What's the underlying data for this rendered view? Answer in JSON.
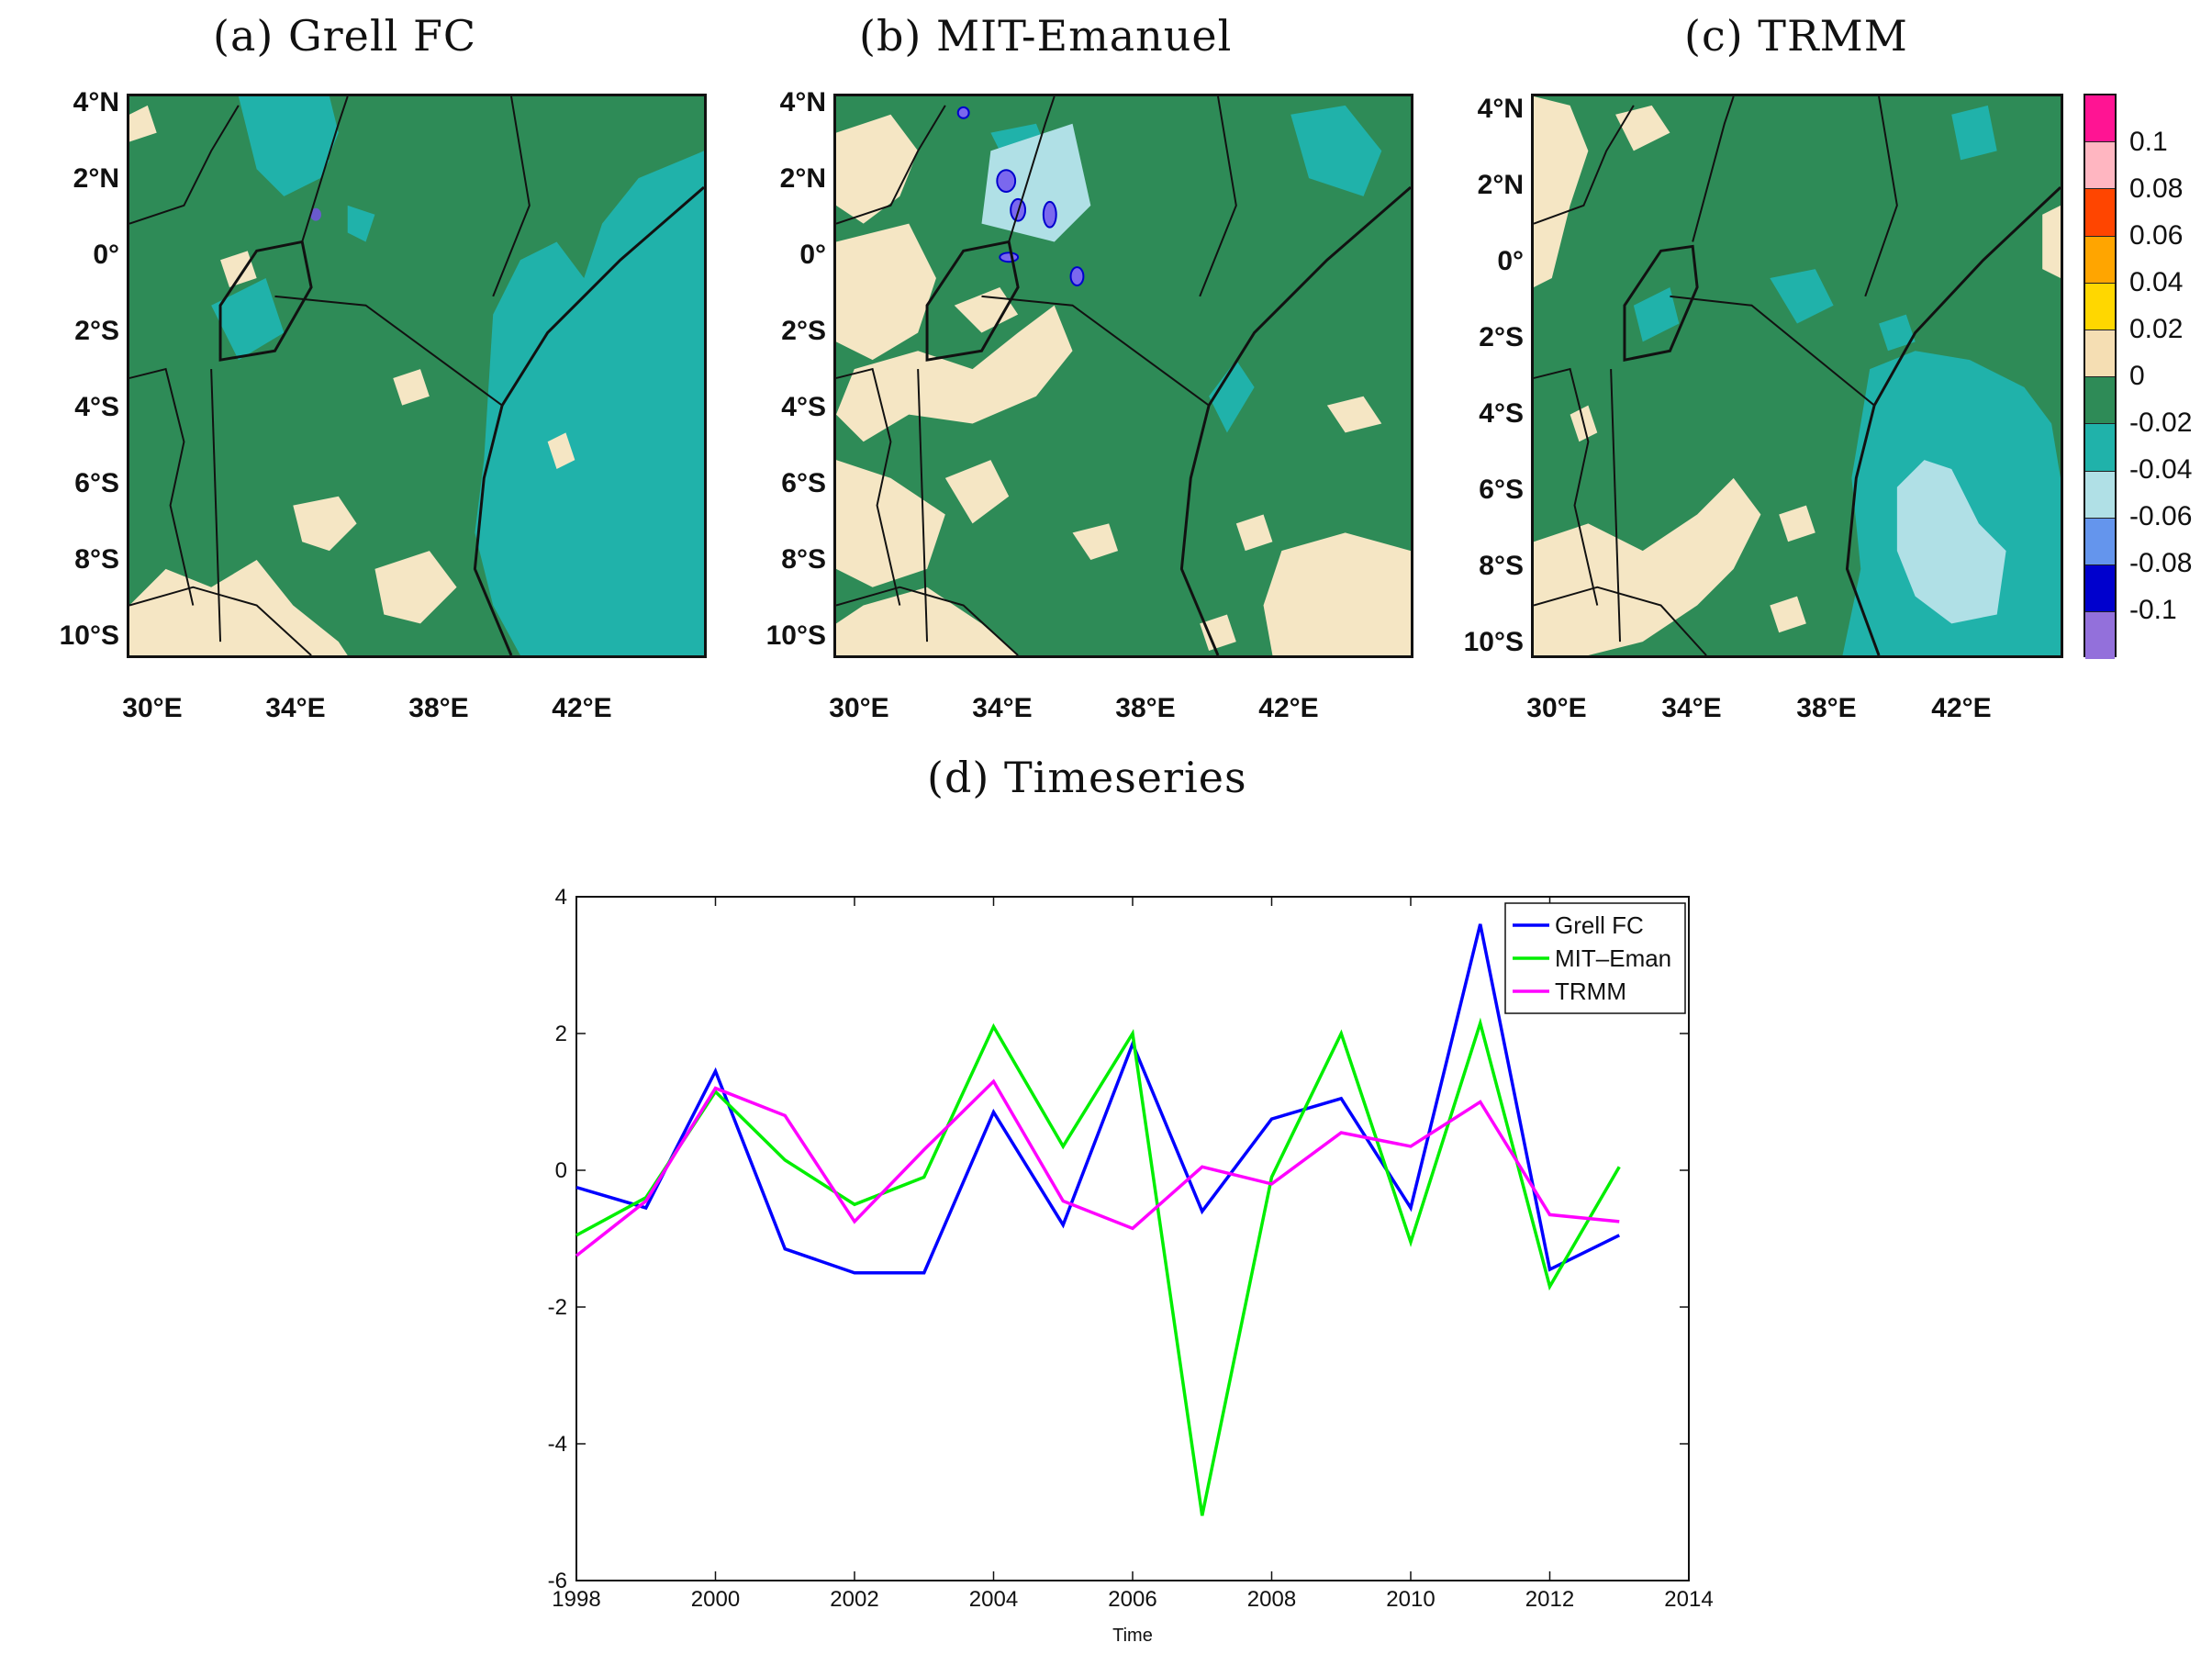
{
  "maps": [
    {
      "id": "a",
      "title": "(a)  Grell FC"
    },
    {
      "id": "b",
      "title": "(b)  MIT-Emanuel"
    },
    {
      "id": "c",
      "title": "(c)  TRMM"
    }
  ],
  "map_axes": {
    "lat_labels": [
      "4°N",
      "2°N",
      "0°",
      "2°S",
      "4°S",
      "6°S",
      "8°S",
      "10°S"
    ],
    "lon_labels": [
      "30°E",
      "34°E",
      "38°E",
      "42°E"
    ]
  },
  "colorbar": {
    "labels": [
      "0.1",
      "0.08",
      "0.06",
      "0.04",
      "0.02",
      "0",
      "-0.02",
      "-0.04",
      "-0.06",
      "-0.08",
      "-0.1"
    ],
    "colors": [
      "#ff1493",
      "#ffb6c1",
      "#ff4500",
      "#ffa500",
      "#ffd700",
      "#f5deb3",
      "#2e8b57",
      "#20b2aa",
      "#b0e0e6",
      "#6495ed",
      "#0000cd",
      "#9370db"
    ]
  },
  "colors": {
    "land_green": "#2e8b57",
    "tan": "#f5e6c4",
    "teal": "#20b2aa",
    "light_cyan": "#b0e0e6",
    "purple": "#7b68ee"
  },
  "timeseries_title": "(d)  Timeseries",
  "chart_data": {
    "type": "line",
    "title": "(d)  Timeseries",
    "xlabel": "Time",
    "ylabel": "",
    "xlim": [
      1998,
      2014
    ],
    "ylim": [
      -6,
      4
    ],
    "xticks": [
      "1998",
      "2000",
      "2002",
      "2004",
      "2006",
      "2008",
      "2010",
      "2012",
      "2014"
    ],
    "yticks": [
      "4",
      "2",
      "0",
      "-2",
      "-4",
      "-6"
    ],
    "x": [
      1998,
      1999,
      2000,
      2001,
      2002,
      2003,
      2004,
      2005,
      2006,
      2007,
      2008,
      2009,
      2010,
      2011,
      2012,
      2013
    ],
    "series": [
      {
        "name": "Grell FC",
        "color": "#0000ff",
        "values": [
          -0.25,
          -0.55,
          1.45,
          -1.15,
          -1.5,
          -1.5,
          0.85,
          -0.8,
          1.85,
          -0.6,
          0.75,
          1.05,
          -0.55,
          3.6,
          -1.45,
          -0.95
        ]
      },
      {
        "name": "MIT–Eman",
        "color": "#00ee00",
        "values": [
          -0.95,
          -0.4,
          1.15,
          0.15,
          -0.5,
          -0.1,
          2.1,
          0.35,
          2.0,
          -5.05,
          -0.1,
          2.0,
          -1.05,
          2.15,
          -1.7,
          0.05
        ]
      },
      {
        "name": "TRMM",
        "color": "#ff00ff",
        "values": [
          -1.25,
          -0.45,
          1.2,
          0.8,
          -0.75,
          0.3,
          1.3,
          -0.45,
          -0.85,
          0.05,
          -0.2,
          0.55,
          0.35,
          1.0,
          -0.65,
          -0.75
        ]
      }
    ],
    "legend_position": "top-right"
  }
}
